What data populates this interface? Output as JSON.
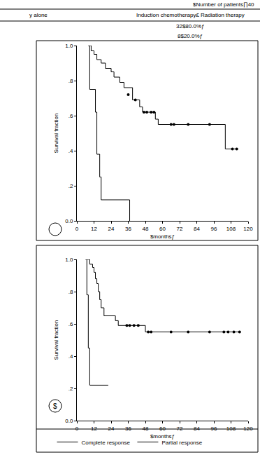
{
  "header_table": {
    "header_right": "$Number of patients∏40",
    "columns": [
      "y alone",
      "Induction chemotherapy£ Radiation therapy"
    ],
    "rows": [
      [
        "32$80.0%ƒ"
      ],
      [
        "8$20.0%ƒ"
      ]
    ]
  },
  "chart_data": [
    {
      "type": "step",
      "y_label": "Survival fraction",
      "x_label": "$monthsƒ",
      "xlim": [
        0,
        120
      ],
      "xticks": [
        0,
        12,
        24,
        36,
        48,
        60,
        72,
        84,
        96,
        108,
        120
      ],
      "ylim": [
        0,
        1
      ],
      "yticks": [
        {
          "value": 0,
          "label": "0.0"
        },
        {
          "value": 0.2,
          "label": ".2"
        },
        {
          "value": 0.4,
          "label": ".4"
        },
        {
          "value": 0.6,
          "label": ".6"
        },
        {
          "value": 0.8,
          "label": ".8"
        },
        {
          "value": 1,
          "label": "1.0"
        }
      ],
      "series": [
        {
          "name": "Complete response",
          "color": "#000000",
          "marker": "circle",
          "x": [
            8,
            10,
            12,
            14,
            17,
            20,
            24,
            26,
            30,
            33,
            39,
            44,
            46,
            55,
            57,
            104,
            113
          ],
          "values": [
            1.0,
            0.97,
            0.95,
            0.92,
            0.9,
            0.87,
            0.85,
            0.82,
            0.79,
            0.76,
            0.69,
            0.65,
            0.62,
            0.58,
            0.55,
            0.41,
            0.41
          ],
          "censored": {
            "x": [
              36,
              41,
              47,
              49,
              52,
              54,
              66,
              68,
              78,
              93,
              109,
              112
            ],
            "values": [
              0.72,
              0.69,
              0.62,
              0.62,
              0.62,
              0.62,
              0.55,
              0.55,
              0.55,
              0.55,
              0.41,
              0.41
            ]
          }
        },
        {
          "name": "Partial response",
          "color": "#000000",
          "x": [
            8,
            9,
            13,
            14,
            16,
            17,
            37,
            37
          ],
          "values": [
            1.0,
            0.75,
            0.62,
            0.38,
            0.25,
            0.12,
            0.12,
            0.0
          ]
        }
      ]
    },
    {
      "type": "step",
      "panel_label": "$",
      "y_label": "Survival fraction",
      "x_label": "$monthsƒ",
      "xlim": [
        0,
        120
      ],
      "xticks": [
        0,
        12,
        24,
        36,
        48,
        60,
        72,
        84,
        96,
        108,
        120
      ],
      "ylim": [
        0,
        1
      ],
      "yticks": [
        {
          "value": 0,
          "label": "0.0"
        },
        {
          "value": 0.2,
          "label": ".2"
        },
        {
          "value": 0.4,
          "label": ".4"
        },
        {
          "value": 0.6,
          "label": ".6"
        },
        {
          "value": 0.8,
          "label": ".8"
        },
        {
          "value": 1,
          "label": "1.0"
        }
      ],
      "legend": "bottom",
      "series": [
        {
          "name": "Complete response",
          "color": "#000000",
          "marker": "circle",
          "x": [
            7,
            9,
            11,
            12,
            13,
            14,
            15,
            16,
            17,
            19,
            27,
            29,
            48,
            115
          ],
          "values": [
            1.0,
            0.97,
            0.95,
            0.92,
            0.88,
            0.85,
            0.8,
            0.75,
            0.7,
            0.65,
            0.62,
            0.59,
            0.55,
            0.55
          ],
          "censored": {
            "x": [
              35,
              37,
              40,
              43,
              50,
              52,
              66,
              78,
              93,
              103,
              106,
              110,
              114
            ],
            "values": [
              0.59,
              0.59,
              0.59,
              0.59,
              0.55,
              0.55,
              0.55,
              0.55,
              0.55,
              0.55,
              0.55,
              0.55,
              0.55
            ]
          }
        },
        {
          "name": "Partial response",
          "color": "#000000",
          "x": [
            6,
            7,
            8,
            9,
            22
          ],
          "values": [
            1.0,
            0.78,
            0.45,
            0.22,
            0.22
          ]
        }
      ]
    }
  ]
}
